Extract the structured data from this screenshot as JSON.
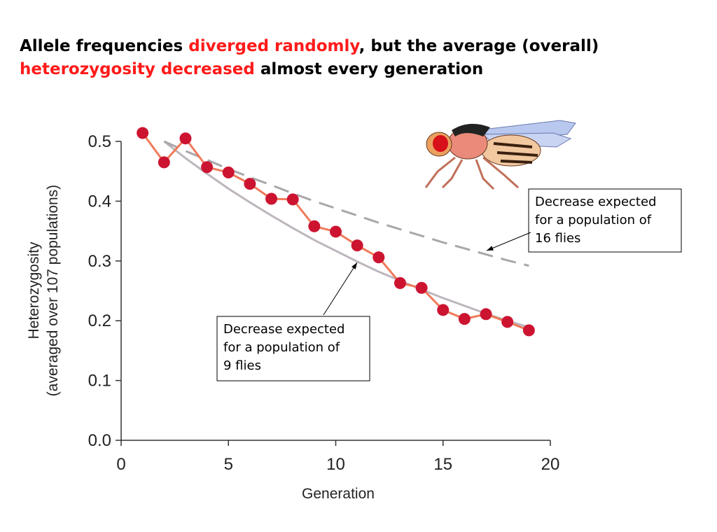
{
  "chart_data": {
    "type": "line",
    "title_lines": [
      [
        {
          "text": "Allele frequencies ",
          "color": "#000000"
        },
        {
          "text": "diverged randomly",
          "color": "#ff1a1a"
        },
        {
          "text": ", but the average (overall)",
          "color": "#000000"
        }
      ],
      [
        {
          "text": "heterozygosity decreased",
          "color": "#ff1a1a"
        },
        {
          "text": " almost every generation",
          "color": "#000000"
        }
      ]
    ],
    "x_label": "Generation",
    "y_label": [
      "Heterozygosity",
      "(averaged over 107 populations)"
    ],
    "xlim": [
      0,
      20
    ],
    "ylim": [
      0,
      0.5
    ],
    "xticks": [
      0,
      5,
      10,
      15,
      20
    ],
    "yticks": [
      {
        "value": 0,
        "label": "0.0"
      },
      0.1,
      0.2,
      0.3,
      0.4,
      0.5
    ],
    "series": [
      {
        "color": "#bdb6bd",
        "dashed": false,
        "marker": false,
        "x": [
          2,
          3,
          4,
          5,
          6,
          7,
          8,
          9,
          10,
          11,
          12,
          13,
          14,
          15,
          16,
          17,
          18,
          19
        ],
        "values": [
          0.5,
          0.472,
          0.446,
          0.421,
          0.398,
          0.376,
          0.355,
          0.335,
          0.317,
          0.299,
          0.282,
          0.267,
          0.252,
          0.238,
          0.225,
          0.212,
          0.2,
          0.189
        ]
      },
      {
        "color": "#aaa6aa",
        "dashed": true,
        "marker": false,
        "x": [
          2,
          3,
          4,
          5,
          6,
          7,
          8,
          9,
          10,
          11,
          12,
          13,
          14,
          15,
          16,
          17,
          18,
          19
        ],
        "values": [
          0.5,
          0.484,
          0.469,
          0.454,
          0.44,
          0.427,
          0.413,
          0.4,
          0.388,
          0.376,
          0.364,
          0.353,
          0.342,
          0.331,
          0.321,
          0.311,
          0.301,
          0.292
        ]
      },
      {
        "color": "#f07a5a",
        "marker_color": "#cc1431",
        "dashed": false,
        "marker": true,
        "x": [
          1,
          2,
          3,
          4,
          5,
          6,
          7,
          8,
          9,
          10,
          11,
          12,
          13,
          14,
          15,
          16,
          17,
          18,
          19
        ],
        "values": [
          0.514,
          0.465,
          0.505,
          0.457,
          0.448,
          0.429,
          0.404,
          0.403,
          0.358,
          0.349,
          0.326,
          0.306,
          0.263,
          0.255,
          0.218,
          0.203,
          0.211,
          0.198,
          0.184
        ]
      }
    ],
    "annotations": [
      {
        "lines": [
          "Decrease expected",
          "for a population of",
          "16 flies"
        ]
      },
      {
        "lines": [
          "Decrease expected",
          "for a population of",
          "9 flies"
        ]
      }
    ]
  }
}
